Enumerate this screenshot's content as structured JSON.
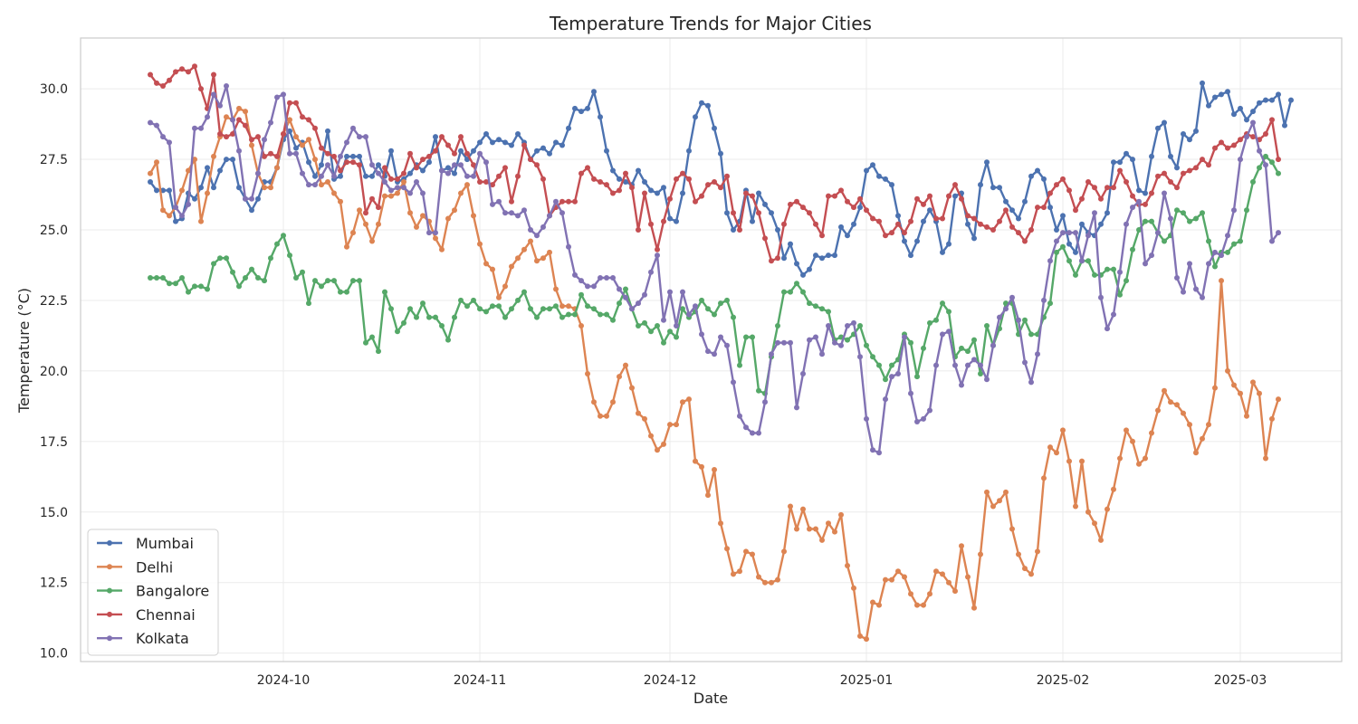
{
  "chart_data": {
    "type": "line",
    "title": "Temperature Trends for Major Cities",
    "xlabel": "Date",
    "ylabel": "Temperature (°C)",
    "ylim": [
      9.7,
      31.8
    ],
    "xlim": [
      "2024-08-30",
      "2025-03-17"
    ],
    "x_start": "2024-09-10",
    "x_step_days": 1,
    "x_ticks": [
      "2024-10-01",
      "2024-11-01",
      "2024-12-01",
      "2025-01-01",
      "2025-02-01",
      "2025-03-01"
    ],
    "x_tick_labels": [
      "2024-10",
      "2024-11",
      "2024-12",
      "2025-01",
      "2025-02",
      "2025-03"
    ],
    "y_ticks": [
      10.0,
      12.5,
      15.0,
      17.5,
      20.0,
      22.5,
      25.0,
      27.5,
      30.0
    ],
    "y_tick_labels": [
      "10.0",
      "12.5",
      "15.0",
      "17.5",
      "20.0",
      "22.5",
      "25.0",
      "27.5",
      "30.0"
    ],
    "grid": true,
    "legend_position": "bottom-left",
    "series": [
      {
        "name": "Mumbai",
        "color": "#4c72b0",
        "values": [
          26.7,
          26.4,
          26.4,
          26.4,
          25.3,
          25.4,
          26.3,
          26.1,
          26.5,
          27.2,
          26.5,
          27.1,
          27.5,
          27.5,
          26.5,
          26.1,
          25.7,
          26.1,
          26.7,
          26.7,
          27.2,
          28.2,
          28.5,
          27.9,
          28.1,
          27.4,
          26.9,
          27.3,
          28.5,
          26.8,
          26.9,
          27.6,
          27.6,
          27.6,
          26.9,
          26.9,
          27.3,
          26.9,
          27.8,
          26.7,
          26.8,
          27.0,
          27.3,
          27.1,
          27.4,
          28.3,
          27.1,
          27.2,
          27.0,
          27.8,
          27.5,
          27.8,
          28.1,
          28.4,
          28.1,
          28.2,
          28.1,
          28.0,
          28.4,
          28.1,
          27.5,
          27.8,
          27.9,
          27.7,
          28.1,
          28.0,
          28.6,
          29.3,
          29.2,
          29.3,
          29.9,
          29.0,
          27.8,
          27.1,
          26.8,
          26.7,
          26.6,
          27.1,
          26.7,
          26.4,
          26.3,
          26.5,
          25.4,
          25.3,
          26.3,
          27.8,
          29.0,
          29.5,
          29.4,
          28.6,
          27.7,
          25.6,
          25.0,
          25.3,
          26.4,
          25.3,
          26.3,
          25.9,
          25.6,
          25.0,
          24.0,
          24.5,
          23.8,
          23.4,
          23.6,
          24.1,
          24.0,
          24.1,
          24.1,
          25.1,
          24.8,
          25.2,
          25.8,
          27.1,
          27.3,
          26.9,
          26.8,
          26.6,
          25.5,
          24.6,
          24.1,
          24.6,
          25.3,
          25.7,
          25.3,
          24.2,
          24.5,
          26.2,
          26.3,
          25.2,
          24.7,
          26.6,
          27.4,
          26.5,
          26.5,
          26.0,
          25.7,
          25.4,
          26.0,
          26.9,
          27.1,
          26.8,
          25.8,
          25.0,
          25.5,
          24.5,
          24.2,
          25.2,
          24.9,
          24.8,
          25.2,
          25.6,
          27.4,
          27.4,
          27.7,
          27.5,
          26.4,
          26.3,
          27.6,
          28.6,
          28.8,
          27.6,
          27.2,
          28.4,
          28.2,
          28.5,
          30.2,
          29.4,
          29.7,
          29.8,
          29.9,
          29.1,
          29.3,
          28.9,
          29.2,
          29.5,
          29.6,
          29.6,
          29.8,
          28.7,
          29.6
        ]
      },
      {
        "name": "Delhi",
        "color": "#dd8452",
        "values": [
          27.0,
          27.4,
          25.7,
          25.5,
          25.8,
          26.4,
          27.1,
          27.5,
          25.3,
          26.3,
          27.6,
          28.3,
          29.0,
          28.9,
          29.3,
          29.2,
          28.0,
          27.0,
          26.5,
          26.5,
          27.2,
          28.4,
          28.9,
          28.3,
          28.0,
          28.2,
          27.5,
          26.6,
          26.7,
          26.3,
          26.0,
          24.4,
          24.9,
          25.7,
          25.2,
          24.6,
          25.2,
          26.2,
          26.2,
          26.3,
          26.7,
          25.6,
          25.1,
          25.5,
          25.3,
          24.7,
          24.3,
          25.4,
          25.7,
          26.3,
          26.6,
          25.5,
          24.5,
          23.8,
          23.6,
          22.6,
          23.0,
          23.7,
          24.0,
          24.3,
          24.6,
          23.9,
          24.0,
          24.2,
          22.9,
          22.3,
          22.3,
          22.2,
          21.6,
          19.9,
          18.9,
          18.4,
          18.4,
          18.9,
          19.8,
          20.2,
          19.4,
          18.5,
          18.3,
          17.7,
          17.2,
          17.4,
          18.1,
          18.1,
          18.9,
          19.0,
          16.8,
          16.6,
          15.6,
          16.5,
          14.6,
          13.7,
          12.8,
          12.9,
          13.6,
          13.5,
          12.7,
          12.5,
          12.5,
          12.6,
          13.6,
          15.2,
          14.4,
          15.1,
          14.4,
          14.4,
          14.0,
          14.6,
          14.3,
          14.9,
          13.1,
          12.3,
          10.6,
          10.5,
          11.8,
          11.7,
          12.6,
          12.6,
          12.9,
          12.7,
          12.1,
          11.7,
          11.7,
          12.1,
          12.9,
          12.8,
          12.5,
          12.2,
          13.8,
          12.7,
          11.6,
          13.5,
          15.7,
          15.2,
          15.4,
          15.7,
          14.4,
          13.5,
          13.0,
          12.8,
          13.6,
          16.2,
          17.3,
          17.1,
          17.9,
          16.8,
          15.2,
          16.8,
          15.0,
          14.6,
          14.0,
          15.1,
          15.8,
          16.9,
          17.9,
          17.5,
          16.7,
          16.9,
          17.8,
          18.6,
          19.3,
          18.9,
          18.8,
          18.5,
          18.1,
          17.1,
          17.6,
          18.1,
          19.4,
          23.2,
          20.0,
          19.5,
          19.2,
          18.4,
          19.6,
          19.2,
          16.9,
          18.3,
          19.0
        ]
      },
      {
        "name": "Bangalore",
        "color": "#55a868",
        "values": [
          23.3,
          23.3,
          23.3,
          23.1,
          23.1,
          23.3,
          22.8,
          23.0,
          23.0,
          22.9,
          23.8,
          24.0,
          24.0,
          23.5,
          23.0,
          23.3,
          23.6,
          23.3,
          23.2,
          24.0,
          24.5,
          24.8,
          24.1,
          23.3,
          23.5,
          22.4,
          23.2,
          23.0,
          23.2,
          23.2,
          22.8,
          22.8,
          23.2,
          23.2,
          21.0,
          21.2,
          20.7,
          22.8,
          22.2,
          21.4,
          21.7,
          22.2,
          21.9,
          22.4,
          21.9,
          21.9,
          21.6,
          21.1,
          21.9,
          22.5,
          22.3,
          22.5,
          22.2,
          22.1,
          22.3,
          22.3,
          21.9,
          22.2,
          22.5,
          22.8,
          22.2,
          21.9,
          22.2,
          22.2,
          22.3,
          21.9,
          22.0,
          22.0,
          22.7,
          22.3,
          22.2,
          22.0,
          22.0,
          21.8,
          22.4,
          22.9,
          22.2,
          21.6,
          21.7,
          21.4,
          21.6,
          21.0,
          21.4,
          21.2,
          22.2,
          21.9,
          22.1,
          22.5,
          22.2,
          22.0,
          22.4,
          22.5,
          21.9,
          20.2,
          21.2,
          21.2,
          19.3,
          19.2,
          20.5,
          21.6,
          22.8,
          22.8,
          23.1,
          22.8,
          22.4,
          22.3,
          22.2,
          22.1,
          21.1,
          21.2,
          21.1,
          21.3,
          21.6,
          20.9,
          20.5,
          20.2,
          19.7,
          20.2,
          20.4,
          21.3,
          21.0,
          19.8,
          20.8,
          21.7,
          21.8,
          22.4,
          22.1,
          20.5,
          20.8,
          20.7,
          21.1,
          19.9,
          21.6,
          20.9,
          21.5,
          22.4,
          22.4,
          21.3,
          21.8,
          21.3,
          21.3,
          21.9,
          22.4,
          24.2,
          24.4,
          23.9,
          23.4,
          23.9,
          23.9,
          23.4,
          23.4,
          23.6,
          23.6,
          22.7,
          23.2,
          24.3,
          25.0,
          25.3,
          25.3,
          24.9,
          24.6,
          24.8,
          25.7,
          25.6,
          25.3,
          25.4,
          25.6,
          24.6,
          23.7,
          24.2,
          24.2,
          24.5,
          24.6,
          25.7,
          26.7,
          27.2,
          27.6,
          27.4,
          27.0
        ]
      },
      {
        "name": "Chennai",
        "color": "#c44e52",
        "values": [
          30.5,
          30.2,
          30.1,
          30.3,
          30.6,
          30.7,
          30.6,
          30.8,
          30.0,
          29.3,
          30.5,
          28.4,
          28.3,
          28.4,
          28.9,
          28.7,
          28.2,
          28.3,
          27.6,
          27.7,
          27.6,
          28.4,
          29.5,
          29.5,
          29.0,
          28.9,
          28.6,
          27.9,
          27.7,
          27.6,
          27.1,
          27.4,
          27.4,
          27.3,
          25.6,
          26.1,
          25.8,
          27.2,
          26.8,
          26.8,
          27.0,
          27.7,
          27.2,
          27.5,
          27.6,
          27.8,
          28.3,
          28.0,
          27.7,
          28.3,
          27.7,
          27.3,
          26.7,
          26.7,
          26.6,
          26.9,
          27.2,
          26.0,
          26.9,
          28.0,
          27.5,
          27.3,
          26.8,
          25.5,
          25.8,
          26.0,
          26.0,
          26.0,
          27.0,
          27.2,
          26.8,
          26.7,
          26.6,
          26.3,
          26.4,
          27.0,
          26.5,
          25.0,
          26.3,
          25.2,
          24.3,
          25.3,
          26.1,
          26.8,
          27.0,
          26.8,
          26.0,
          26.2,
          26.6,
          26.7,
          26.5,
          26.9,
          25.6,
          25.0,
          26.3,
          26.2,
          25.6,
          24.7,
          23.9,
          24.0,
          25.2,
          25.9,
          26.0,
          25.8,
          25.6,
          25.2,
          24.8,
          26.2,
          26.2,
          26.4,
          26.0,
          25.8,
          26.1,
          25.7,
          25.4,
          25.3,
          24.8,
          24.9,
          25.2,
          24.9,
          25.3,
          26.1,
          25.9,
          26.2,
          25.4,
          25.4,
          26.2,
          26.6,
          26.1,
          25.5,
          25.4,
          25.2,
          25.1,
          25.0,
          25.3,
          25.7,
          25.1,
          24.9,
          24.6,
          25.0,
          25.8,
          25.8,
          26.3,
          26.6,
          26.8,
          26.4,
          25.7,
          26.1,
          26.7,
          26.5,
          26.1,
          26.5,
          26.5,
          27.1,
          26.7,
          26.2,
          25.9,
          25.9,
          26.3,
          26.9,
          27.0,
          26.7,
          26.5,
          27.0,
          27.1,
          27.2,
          27.5,
          27.3,
          27.9,
          28.1,
          27.9,
          28.0,
          28.2,
          28.4,
          28.3,
          28.2,
          28.4,
          28.9,
          27.5
        ]
      },
      {
        "name": "Kolkata",
        "color": "#8172b3",
        "values": [
          28.8,
          28.7,
          28.3,
          28.1,
          25.8,
          25.5,
          25.9,
          28.6,
          28.6,
          29.0,
          29.8,
          29.4,
          30.1,
          28.9,
          27.8,
          26.1,
          26.1,
          27.0,
          28.2,
          28.8,
          29.7,
          29.8,
          27.7,
          27.7,
          27.0,
          26.6,
          26.6,
          26.9,
          27.3,
          26.9,
          27.6,
          28.1,
          28.6,
          28.3,
          28.3,
          27.3,
          27.0,
          26.7,
          26.4,
          26.5,
          26.5,
          26.3,
          26.7,
          26.3,
          24.9,
          24.9,
          27.1,
          27.0,
          27.3,
          27.3,
          26.9,
          26.9,
          27.7,
          27.4,
          25.9,
          26.0,
          25.6,
          25.6,
          25.5,
          25.7,
          25.0,
          24.8,
          25.1,
          25.5,
          26.0,
          25.6,
          24.4,
          23.4,
          23.2,
          23.0,
          23.0,
          23.3,
          23.3,
          23.3,
          22.9,
          22.6,
          22.2,
          22.4,
          22.7,
          23.5,
          24.1,
          21.8,
          22.8,
          21.6,
          22.8,
          22.0,
          22.3,
          21.3,
          20.7,
          20.6,
          21.2,
          20.9,
          19.6,
          18.4,
          18.0,
          17.8,
          17.8,
          18.9,
          20.6,
          21.0,
          21.0,
          21.0,
          18.7,
          19.9,
          21.1,
          21.2,
          20.6,
          21.6,
          21.0,
          20.9,
          21.6,
          21.7,
          20.5,
          18.3,
          17.2,
          17.1,
          19.0,
          19.8,
          19.9,
          21.2,
          19.2,
          18.2,
          18.3,
          18.6,
          20.2,
          21.3,
          21.4,
          20.2,
          19.5,
          20.2,
          20.4,
          20.2,
          19.7,
          20.9,
          21.9,
          22.2,
          22.6,
          21.8,
          20.3,
          19.6,
          20.6,
          22.5,
          23.9,
          24.6,
          24.9,
          24.9,
          24.9,
          23.9,
          24.8,
          25.6,
          22.6,
          21.5,
          22.0,
          23.5,
          25.2,
          25.8,
          26.0,
          23.8,
          24.1,
          24.9,
          26.3,
          25.4,
          23.3,
          22.8,
          23.8,
          22.9,
          22.6,
          23.8,
          24.2,
          24.1,
          24.8,
          25.7,
          27.5,
          28.3,
          28.8,
          27.8,
          27.3,
          24.6,
          24.9
        ]
      }
    ]
  }
}
